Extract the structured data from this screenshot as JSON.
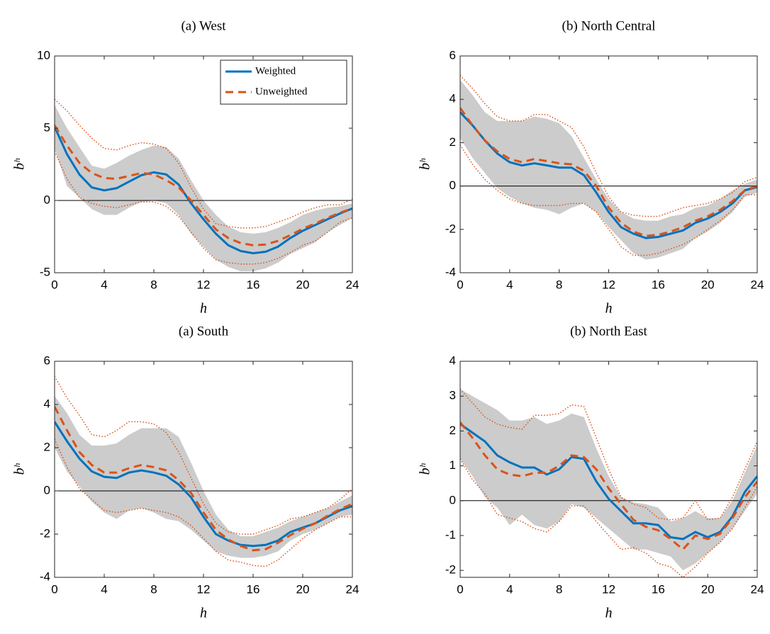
{
  "chart_data": [
    {
      "type": "line",
      "title": "(a) West",
      "xlabel": "h",
      "ylabel": "bʰ",
      "x": [
        0,
        1,
        2,
        3,
        4,
        5,
        6,
        7,
        8,
        9,
        10,
        11,
        12,
        13,
        14,
        15,
        16,
        17,
        18,
        19,
        20,
        21,
        22,
        23,
        24
      ],
      "xlim": [
        0,
        24
      ],
      "xticks": [
        0,
        4,
        8,
        12,
        16,
        20,
        24
      ],
      "ylim": [
        -5,
        10
      ],
      "yticks": [
        -5,
        0,
        5,
        10
      ],
      "zero_line": true,
      "legend": "upper right",
      "band": {
        "color": "#cccccc",
        "upper": [
          6.6,
          5.0,
          3.7,
          2.4,
          2.2,
          2.6,
          3.1,
          3.5,
          3.8,
          3.7,
          2.9,
          1.4,
          0.0,
          -1.0,
          -1.8,
          -2.2,
          -2.3,
          -2.2,
          -1.9,
          -1.5,
          -1.0,
          -0.7,
          -0.5,
          -0.4,
          -0.2
        ],
        "lower": [
          3.6,
          1.0,
          0.2,
          -0.6,
          -1.0,
          -1.0,
          -0.5,
          -0.1,
          0.0,
          -0.2,
          -1.0,
          -2.3,
          -3.2,
          -4.1,
          -4.6,
          -4.9,
          -4.9,
          -4.7,
          -4.3,
          -3.7,
          -3.3,
          -2.9,
          -2.2,
          -1.7,
          -1.2
        ]
      },
      "bounds": {
        "color": "#d95319",
        "upper": [
          7.0,
          6.2,
          5.2,
          4.3,
          3.6,
          3.5,
          3.8,
          4.0,
          3.9,
          3.6,
          2.6,
          0.9,
          -0.6,
          -1.6,
          -1.8,
          -1.9,
          -1.9,
          -1.8,
          -1.5,
          -1.2,
          -0.8,
          -0.5,
          -0.3,
          -0.3,
          0.1
        ],
        "lower": [
          3.4,
          1.5,
          0.2,
          -0.2,
          -0.4,
          -0.5,
          -0.3,
          -0.1,
          -0.1,
          -0.4,
          -1.1,
          -2.2,
          -3.3,
          -4.1,
          -4.3,
          -4.4,
          -4.4,
          -4.3,
          -4.0,
          -3.6,
          -3.1,
          -2.8,
          -2.2,
          -1.5,
          -1.2
        ]
      },
      "series": [
        {
          "name": "Weighted",
          "color": "#0072bd",
          "dashed": false,
          "values": [
            5.1,
            3.2,
            1.8,
            0.9,
            0.7,
            0.85,
            1.3,
            1.75,
            1.95,
            1.8,
            1.1,
            -0.2,
            -1.3,
            -2.3,
            -3.1,
            -3.5,
            -3.65,
            -3.55,
            -3.2,
            -2.6,
            -2.1,
            -1.7,
            -1.3,
            -0.9,
            -0.55
          ]
        },
        {
          "name": "Unweighted",
          "color": "#d95319",
          "dashed": true,
          "values": [
            5.2,
            3.8,
            2.6,
            1.9,
            1.55,
            1.5,
            1.7,
            1.9,
            1.8,
            1.4,
            0.9,
            0.0,
            -1.0,
            -2.0,
            -2.6,
            -2.95,
            -3.1,
            -3.05,
            -2.8,
            -2.4,
            -1.95,
            -1.6,
            -1.2,
            -0.85,
            -0.55
          ]
        }
      ]
    },
    {
      "type": "line",
      "title": "(b) North Central",
      "xlabel": "h",
      "ylabel": "bʰ",
      "x": [
        0,
        1,
        2,
        3,
        4,
        5,
        6,
        7,
        8,
        9,
        10,
        11,
        12,
        13,
        14,
        15,
        16,
        17,
        18,
        19,
        20,
        21,
        22,
        23,
        24
      ],
      "xlim": [
        0,
        24
      ],
      "xticks": [
        0,
        4,
        8,
        12,
        16,
        20,
        24
      ],
      "ylim": [
        -4,
        6
      ],
      "yticks": [
        -4,
        -2,
        0,
        2,
        4,
        6
      ],
      "zero_line": true,
      "band": {
        "color": "#cccccc",
        "upper": [
          4.9,
          4.2,
          3.4,
          3.0,
          3.0,
          3.0,
          3.2,
          3.1,
          2.9,
          2.3,
          1.3,
          0.3,
          -0.6,
          -1.2,
          -1.5,
          -1.6,
          -1.6,
          -1.4,
          -1.3,
          -1.0,
          -0.9,
          -0.6,
          -0.2,
          0.1,
          0.3
        ],
        "lower": [
          2.2,
          1.3,
          0.6,
          -0.1,
          -0.5,
          -0.8,
          -1.0,
          -1.1,
          -1.3,
          -1.0,
          -0.8,
          -1.2,
          -1.9,
          -2.5,
          -3.1,
          -3.4,
          -3.3,
          -3.1,
          -2.9,
          -2.4,
          -2.1,
          -1.7,
          -1.2,
          -0.5,
          -0.3
        ]
      },
      "bounds": {
        "color": "#d95319",
        "upper": [
          5.1,
          4.5,
          3.8,
          3.2,
          3.0,
          3.0,
          3.3,
          3.3,
          3.0,
          2.7,
          1.8,
          0.6,
          -0.5,
          -1.2,
          -1.35,
          -1.4,
          -1.4,
          -1.2,
          -1.0,
          -0.9,
          -0.8,
          -0.6,
          -0.3,
          0.2,
          0.4
        ],
        "lower": [
          1.9,
          1.0,
          0.3,
          -0.2,
          -0.6,
          -0.8,
          -0.9,
          -0.9,
          -0.9,
          -0.8,
          -0.8,
          -1.2,
          -2.0,
          -2.8,
          -3.2,
          -3.2,
          -3.1,
          -2.9,
          -2.7,
          -2.4,
          -2.0,
          -1.6,
          -1.1,
          -0.4,
          -0.4
        ]
      },
      "series": [
        {
          "name": "Weighted",
          "color": "#0072bd",
          "dashed": false,
          "values": [
            3.4,
            2.8,
            2.1,
            1.5,
            1.1,
            0.95,
            1.05,
            0.95,
            0.85,
            0.85,
            0.5,
            -0.3,
            -1.2,
            -1.9,
            -2.2,
            -2.4,
            -2.35,
            -2.2,
            -2.05,
            -1.7,
            -1.5,
            -1.2,
            -0.8,
            -0.2,
            -0.05
          ]
        },
        {
          "name": "Unweighted",
          "color": "#d95319",
          "dashed": true,
          "values": [
            3.6,
            2.8,
            2.1,
            1.6,
            1.25,
            1.1,
            1.25,
            1.15,
            1.05,
            1.0,
            0.7,
            0.0,
            -1.0,
            -1.7,
            -2.1,
            -2.3,
            -2.25,
            -2.1,
            -1.9,
            -1.6,
            -1.4,
            -1.1,
            -0.7,
            -0.2,
            0.0
          ]
        }
      ]
    },
    {
      "type": "line",
      "title": "(a) South",
      "xlabel": "h",
      "ylabel": "bʰ",
      "x": [
        0,
        1,
        2,
        3,
        4,
        5,
        6,
        7,
        8,
        9,
        10,
        11,
        12,
        13,
        14,
        15,
        16,
        17,
        18,
        19,
        20,
        21,
        22,
        23,
        24
      ],
      "xlim": [
        0,
        24
      ],
      "xticks": [
        0,
        4,
        8,
        12,
        16,
        20,
        24
      ],
      "ylim": [
        -4,
        6
      ],
      "yticks": [
        -4,
        -2,
        0,
        2,
        4,
        6
      ],
      "zero_line": true,
      "band": {
        "color": "#cccccc",
        "upper": [
          4.4,
          3.6,
          2.6,
          2.1,
          2.1,
          2.2,
          2.6,
          2.9,
          2.9,
          2.9,
          2.5,
          1.3,
          0.0,
          -1.1,
          -1.8,
          -2.1,
          -2.1,
          -1.9,
          -1.7,
          -1.4,
          -1.2,
          -1.0,
          -0.8,
          -0.5,
          -0.2
        ],
        "lower": [
          2.0,
          0.9,
          0.2,
          -0.5,
          -1.0,
          -1.3,
          -0.9,
          -0.8,
          -1.0,
          -1.3,
          -1.4,
          -1.8,
          -2.3,
          -2.8,
          -3.0,
          -3.1,
          -3.1,
          -3.0,
          -2.8,
          -2.3,
          -2.0,
          -1.8,
          -1.5,
          -1.2,
          -1.1
        ]
      },
      "bounds": {
        "color": "#d95319",
        "upper": [
          5.3,
          4.3,
          3.5,
          2.6,
          2.5,
          2.8,
          3.2,
          3.2,
          3.1,
          2.7,
          1.8,
          0.6,
          -0.6,
          -1.5,
          -1.9,
          -2.0,
          -2.0,
          -1.8,
          -1.6,
          -1.3,
          -1.2,
          -1.0,
          -0.8,
          -0.4,
          0.1
        ],
        "lower": [
          2.4,
          1.1,
          0.1,
          -0.4,
          -0.9,
          -1.0,
          -0.9,
          -0.8,
          -0.9,
          -1.0,
          -1.2,
          -1.6,
          -2.2,
          -2.8,
          -3.2,
          -3.3,
          -3.45,
          -3.5,
          -3.2,
          -2.7,
          -2.2,
          -1.8,
          -1.5,
          -1.2,
          -1.2
        ]
      },
      "series": [
        {
          "name": "Weighted",
          "color": "#0072bd",
          "dashed": false,
          "values": [
            3.2,
            2.3,
            1.5,
            0.9,
            0.65,
            0.6,
            0.85,
            0.95,
            0.85,
            0.7,
            0.3,
            -0.3,
            -1.2,
            -2.0,
            -2.3,
            -2.5,
            -2.55,
            -2.5,
            -2.3,
            -1.9,
            -1.7,
            -1.5,
            -1.2,
            -0.9,
            -0.7
          ]
        },
        {
          "name": "Unweighted",
          "color": "#d95319",
          "dashed": true,
          "values": [
            3.9,
            2.8,
            1.8,
            1.2,
            0.85,
            0.85,
            1.05,
            1.2,
            1.1,
            0.95,
            0.5,
            -0.1,
            -1.0,
            -1.8,
            -2.25,
            -2.55,
            -2.75,
            -2.7,
            -2.4,
            -2.05,
            -1.75,
            -1.5,
            -1.15,
            -0.85,
            -0.6
          ]
        }
      ]
    },
    {
      "type": "line",
      "title": "(b) North East",
      "xlabel": "h",
      "ylabel": "bʰ",
      "x": [
        0,
        1,
        2,
        3,
        4,
        5,
        6,
        7,
        8,
        9,
        10,
        11,
        12,
        13,
        14,
        15,
        16,
        17,
        18,
        19,
        20,
        21,
        22,
        23,
        24
      ],
      "xlim": [
        0,
        24
      ],
      "xticks": [
        0,
        4,
        8,
        12,
        16,
        20,
        24
      ],
      "ylim": [
        -2.2,
        4
      ],
      "yticks": [
        -2,
        -1,
        0,
        1,
        2,
        3,
        4
      ],
      "zero_line": true,
      "band": {
        "color": "#cccccc",
        "upper": [
          3.2,
          3.0,
          2.8,
          2.6,
          2.3,
          2.3,
          2.4,
          2.2,
          2.3,
          2.5,
          2.4,
          1.5,
          0.7,
          0.1,
          -0.05,
          -0.1,
          -0.2,
          -0.6,
          -0.5,
          -0.3,
          -0.5,
          -0.5,
          0.0,
          0.8,
          1.6
        ],
        "lower": [
          1.2,
          0.7,
          0.1,
          -0.2,
          -0.7,
          -0.4,
          -0.7,
          -0.8,
          -0.6,
          -0.1,
          -0.2,
          -0.5,
          -0.8,
          -1.1,
          -1.4,
          -1.4,
          -1.5,
          -1.6,
          -2.0,
          -1.8,
          -1.5,
          -1.2,
          -0.8,
          -0.3,
          0.2
        ]
      },
      "bounds": {
        "color": "#d95319",
        "upper": [
          3.2,
          2.8,
          2.4,
          2.2,
          2.1,
          2.05,
          2.45,
          2.45,
          2.5,
          2.75,
          2.7,
          1.8,
          0.9,
          0.1,
          -0.1,
          -0.2,
          -0.5,
          -0.55,
          -0.5,
          0.0,
          -0.55,
          -0.5,
          0.1,
          0.9,
          1.7
        ],
        "lower": [
          1.2,
          0.6,
          0.2,
          -0.4,
          -0.5,
          -0.6,
          -0.8,
          -0.9,
          -0.6,
          -0.15,
          -0.15,
          -0.6,
          -1.0,
          -1.4,
          -1.35,
          -1.5,
          -1.8,
          -1.9,
          -2.2,
          -1.9,
          -1.5,
          -1.2,
          -0.8,
          -0.2,
          0.4
        ]
      },
      "series": [
        {
          "name": "Weighted",
          "color": "#0072bd",
          "dashed": false,
          "values": [
            2.2,
            1.95,
            1.7,
            1.3,
            1.1,
            0.95,
            0.95,
            0.75,
            0.9,
            1.25,
            1.2,
            0.55,
            0.05,
            -0.3,
            -0.65,
            -0.65,
            -0.7,
            -1.05,
            -1.1,
            -0.9,
            -1.05,
            -0.9,
            -0.45,
            0.25,
            0.7
          ]
        },
        {
          "name": "Unweighted",
          "color": "#d95319",
          "dashed": true,
          "values": [
            2.25,
            1.8,
            1.3,
            0.9,
            0.75,
            0.7,
            0.8,
            0.8,
            1.0,
            1.3,
            1.25,
            0.9,
            0.35,
            -0.1,
            -0.55,
            -0.75,
            -0.85,
            -1.1,
            -1.4,
            -1.0,
            -1.1,
            -0.95,
            -0.5,
            0.1,
            0.55
          ]
        }
      ]
    }
  ]
}
